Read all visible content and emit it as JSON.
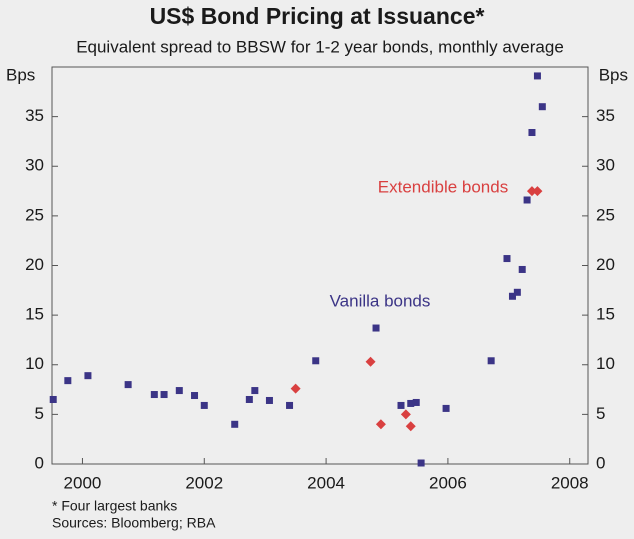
{
  "chart_data": {
    "type": "scatter",
    "title": "US$ Bond Pricing at Issuance*",
    "subtitle": "Equivalent spread to BBSW for 1-2 year bonds, monthly average",
    "ylabel": "Bps",
    "notes": "* Four largest banks",
    "source": "Sources: Bloomberg; RBA",
    "xlim": [
      1999.5,
      2008.3
    ],
    "xticks": [
      2000,
      2002,
      2004,
      2006,
      2008
    ],
    "ylim": [
      0,
      40
    ],
    "yticks": [
      0,
      5,
      10,
      15,
      20,
      25,
      30,
      35
    ],
    "grid": false,
    "series": [
      {
        "name": "Vanilla bonds",
        "color": "#3b3486",
        "marker": "square",
        "x": [
          1999.52,
          1999.76,
          2000.09,
          2000.75,
          2001.18,
          2001.34,
          2001.59,
          2001.84,
          2002.0,
          2002.5,
          2002.74,
          2002.83,
          2003.07,
          2003.4,
          2003.83,
          2004.82,
          2005.23,
          2005.39,
          2005.48,
          2005.56,
          2005.97,
          2006.71,
          2006.97,
          2007.06,
          2007.14,
          2007.22,
          2007.3,
          2007.38,
          2007.47,
          2007.55
        ],
        "values": [
          6.5,
          8.4,
          8.9,
          8.0,
          7.0,
          7.0,
          7.4,
          6.9,
          5.9,
          4.0,
          6.5,
          7.4,
          6.4,
          5.9,
          10.4,
          13.7,
          5.9,
          6.1,
          6.2,
          0.1,
          5.6,
          10.4,
          20.7,
          16.9,
          17.3,
          19.6,
          26.6,
          33.4,
          39.1,
          36.0
        ]
      },
      {
        "name": "Extendible bonds",
        "color": "#d94040",
        "marker": "diamond",
        "x": [
          2003.5,
          2004.73,
          2004.9,
          2005.31,
          2005.39,
          2007.38,
          2007.47
        ],
        "values": [
          7.6,
          10.3,
          4.0,
          5.0,
          3.8,
          27.5,
          27.5
        ]
      }
    ]
  }
}
